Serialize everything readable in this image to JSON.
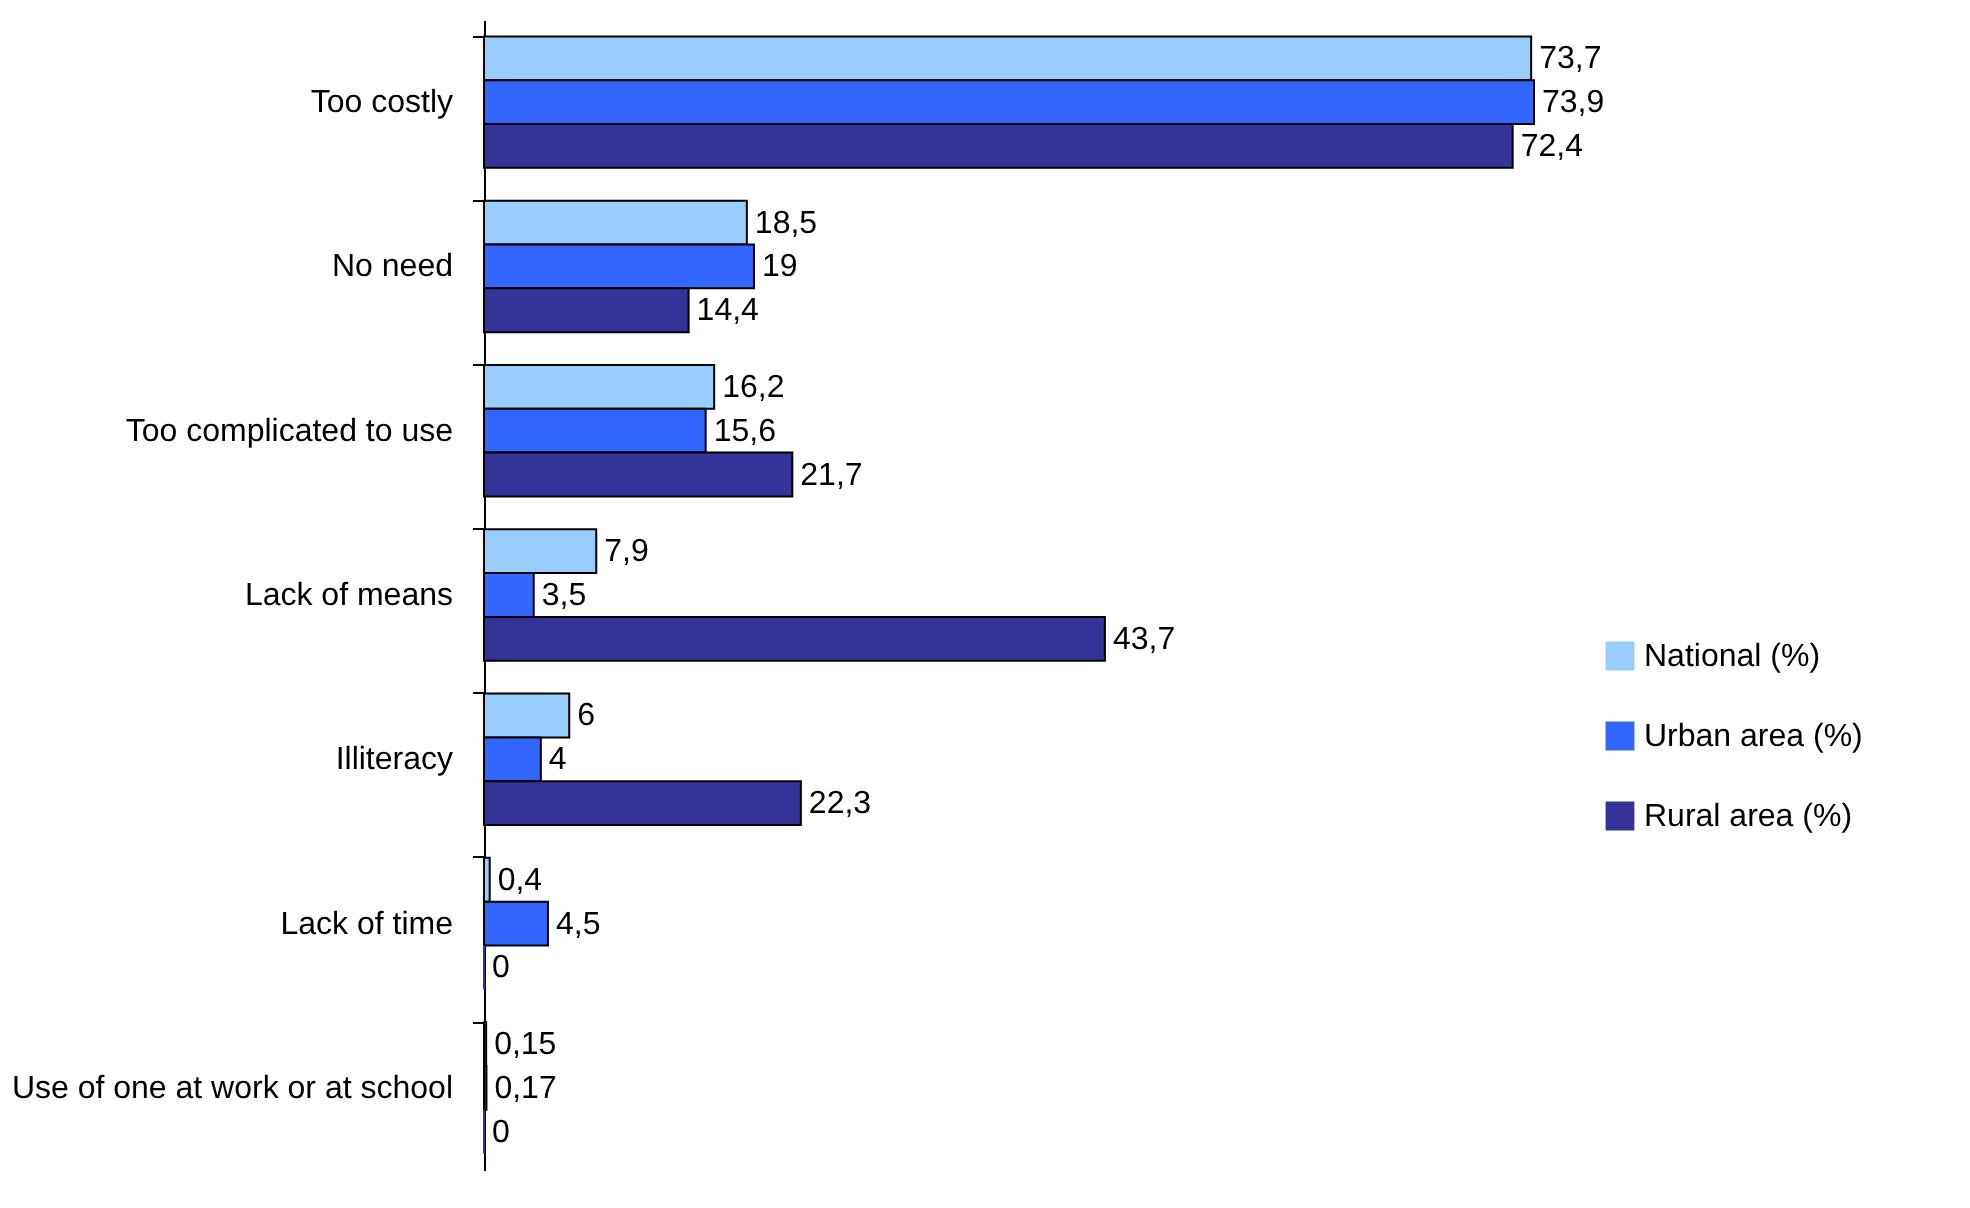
{
  "chart_data": {
    "type": "bar",
    "orientation": "horizontal",
    "categories": [
      "Too costly",
      "No need",
      "Too complicated to use",
      "Lack of means",
      "Illiteracy",
      "Lack of time",
      "Use of one at work or at school"
    ],
    "series": [
      {
        "name": "National (%)",
        "color": "#99ccff",
        "values": [
          73.7,
          18.5,
          16.2,
          7.9,
          6,
          0.4,
          0.15
        ],
        "value_labels": [
          "73,7",
          "18,5",
          "16,2",
          "7,9",
          "6",
          "0,4",
          "0,15"
        ]
      },
      {
        "name": "Urban area (%)",
        "color": "#3366ff",
        "values": [
          73.9,
          19,
          15.6,
          3.5,
          4,
          4.5,
          0.17
        ],
        "value_labels": [
          "73,9",
          "19",
          "15,6",
          "3,5",
          "4",
          "4,5",
          "0,17"
        ]
      },
      {
        "name": "Rural area (%)",
        "color": "#333399",
        "values": [
          72.4,
          14.4,
          21.7,
          43.7,
          22.3,
          0,
          0
        ],
        "value_labels": [
          "72,4",
          "14,4",
          "21,7",
          "43,7",
          "22,3",
          "0",
          "0"
        ]
      }
    ],
    "legend": "right"
  }
}
